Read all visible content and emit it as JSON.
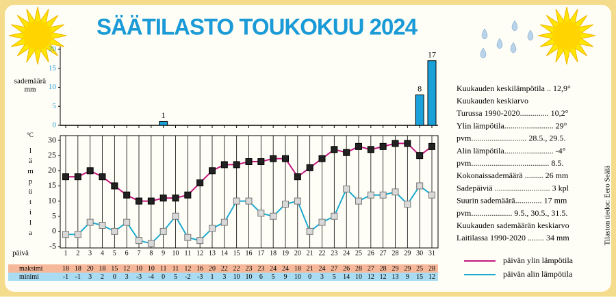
{
  "title": "SÄÄTILASTO TOUKOKUU 2024",
  "chart_data": [
    {
      "type": "bar",
      "y_label": [
        "sademäärä",
        "mm"
      ],
      "values": [
        0,
        0,
        0,
        0,
        0,
        0,
        0,
        0,
        1,
        0,
        0,
        0,
        0,
        0,
        0,
        0,
        0,
        0,
        0,
        0,
        0,
        0,
        0,
        0,
        0,
        0,
        0,
        0,
        0,
        8,
        17
      ],
      "ylim": [
        0,
        20
      ],
      "yticks": [
        0,
        5,
        10,
        15,
        20
      ],
      "color": "#1ba1d9"
    },
    {
      "type": "line",
      "y_label": "°C",
      "y_label_vertical": "lämpötila",
      "x_label": "päivä",
      "categories": [
        "1",
        "2",
        "3",
        "4",
        "5",
        "6",
        "7",
        "8",
        "9",
        "10",
        "11",
        "12",
        "13",
        "14",
        "15",
        "16",
        "17",
        "18",
        "19",
        "20",
        "21",
        "22",
        "23",
        "24",
        "25",
        "26",
        "27",
        "28",
        "29",
        "30",
        "31"
      ],
      "series": [
        {
          "name": "päivän ylin lämpötila",
          "color": "#c2187e",
          "values": [
            18,
            18,
            20,
            18,
            15,
            12,
            10,
            10,
            11,
            11,
            12,
            16,
            20,
            22,
            22,
            23,
            23,
            24,
            24,
            18,
            21,
            24,
            27,
            26,
            28,
            27,
            28,
            29,
            29,
            25,
            28
          ]
        },
        {
          "name": "päivän alin lämpötila",
          "color": "#1aa9cf",
          "values": [
            -1,
            -1,
            3,
            2,
            0,
            3,
            -3,
            -4,
            0,
            5,
            -2,
            -3,
            1,
            3,
            10,
            10,
            6,
            5,
            9,
            10,
            0,
            3,
            5,
            14,
            10,
            12,
            12,
            13,
            9,
            15,
            12
          ]
        }
      ],
      "ylim": [
        -5,
        30
      ],
      "yticks": [
        -5,
        0,
        5,
        10,
        15,
        20,
        25,
        30
      ]
    }
  ],
  "table": {
    "row_labels": [
      "maksimi",
      "minimi"
    ]
  },
  "stats": [
    "Kuukauden keskilämpötila .. 12,9°",
    "Kuukauden keskiarvo",
    "Turussa 1990-2020.............. 10,2°",
    "Ylin lämpötila........................ 29°",
    "pvm........................... 28.5., 29.5.",
    "Alin lämpötila........................ -4°",
    "pvm...................................... 8.5.",
    "Kokonaissademäärä ......... 26 mm",
    "Sadepäiviä ........................... 3 kpl",
    "Suurin sademäärä............. 17 mm",
    "pvm.................... 9.5., 30.5., 31.5.",
    "Kuukauden sademäärän keskiarvo",
    "Laitilassa 1990-2020 ........ 34 mm"
  ],
  "credit": "Tilaston tiedot: Eero Seälä"
}
